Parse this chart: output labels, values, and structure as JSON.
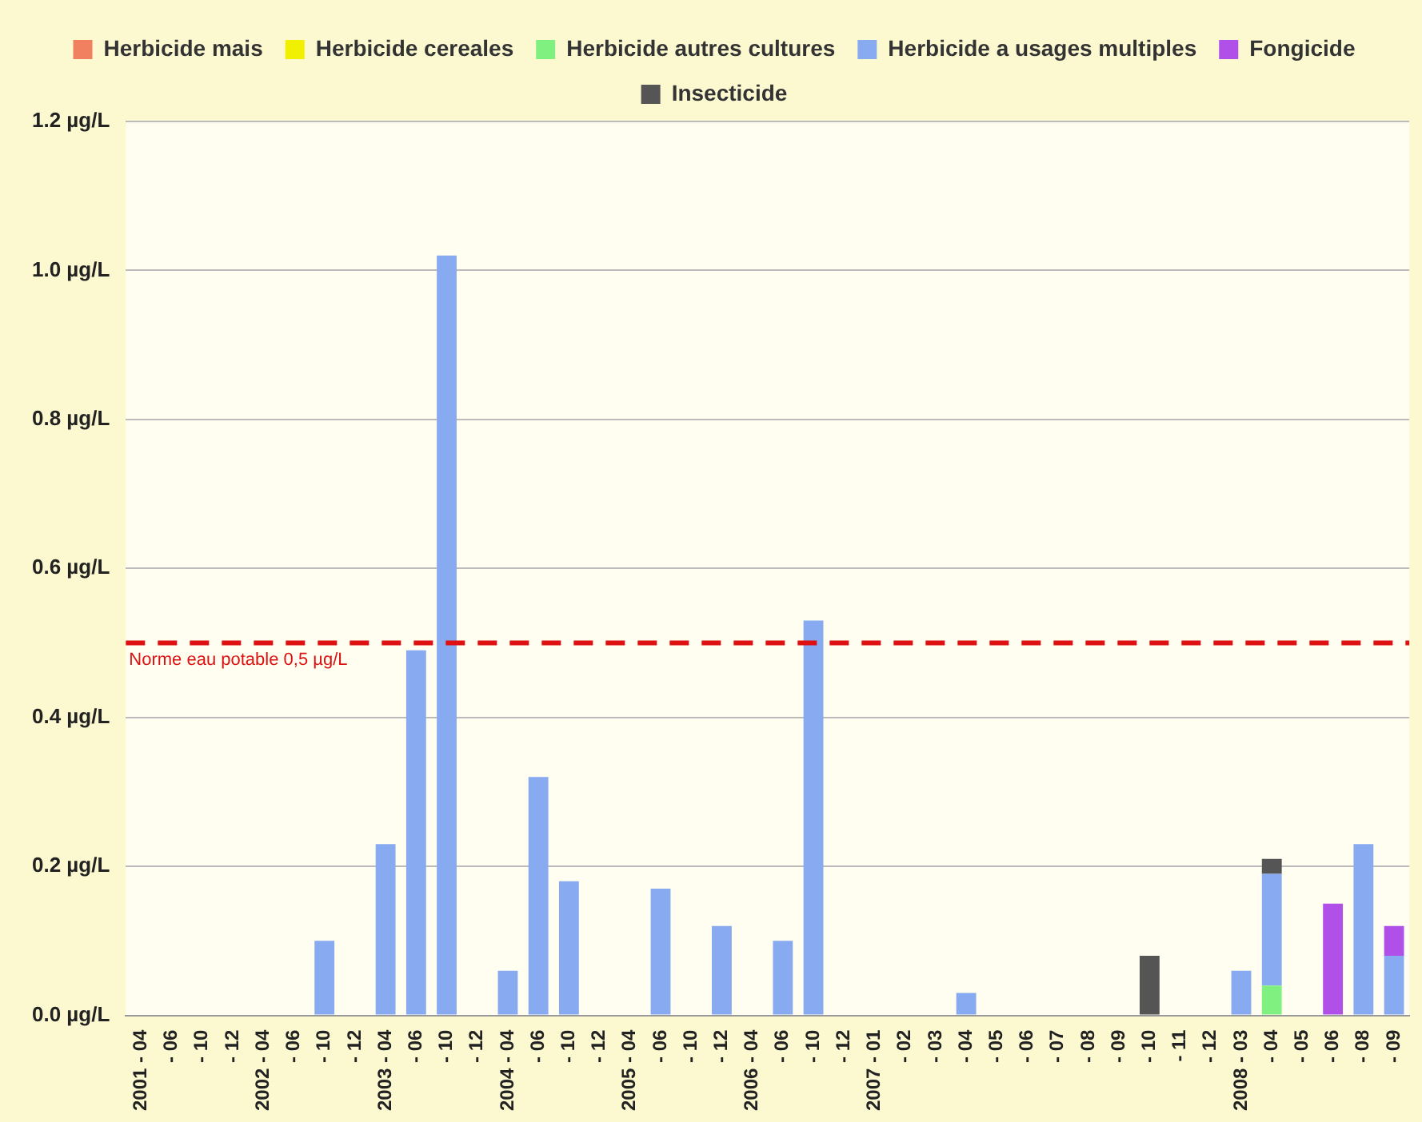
{
  "chart_data": {
    "type": "bar",
    "stacked": true,
    "categories": [
      "2001 - 04",
      "- 06",
      "- 10",
      "- 12",
      "2002 - 04",
      "- 06",
      "- 10",
      "- 12",
      "2003 - 04",
      "- 06",
      "- 10",
      "- 12",
      "2004 - 04",
      "- 06",
      "- 10",
      "- 12",
      "2005 - 04",
      "- 06",
      "- 10",
      "- 12",
      "2006 - 04",
      "- 06",
      "- 10",
      "- 12",
      "2007 - 01",
      "- 02",
      "- 03",
      "- 04",
      "- 05",
      "- 06",
      "- 07",
      "- 08",
      "- 09",
      "- 10",
      "- 11",
      "- 12",
      "2008 - 03",
      "- 04",
      "- 05",
      "- 06",
      "- 08",
      "- 09"
    ],
    "series": [
      {
        "name": "Herbicide mais",
        "color": "#f08060",
        "values": [
          null,
          null,
          null,
          null,
          null,
          null,
          null,
          null,
          null,
          null,
          null,
          null,
          null,
          null,
          null,
          null,
          null,
          null,
          null,
          null,
          null,
          null,
          null,
          null,
          null,
          null,
          null,
          null,
          null,
          null,
          null,
          null,
          null,
          null,
          null,
          null,
          null,
          null,
          null,
          null,
          null,
          null
        ]
      },
      {
        "name": "Herbicide cereales",
        "color": "#f0f000",
        "values": [
          null,
          null,
          null,
          null,
          null,
          null,
          null,
          null,
          null,
          null,
          null,
          null,
          null,
          null,
          null,
          null,
          null,
          null,
          null,
          null,
          null,
          null,
          null,
          null,
          null,
          null,
          null,
          null,
          null,
          null,
          null,
          null,
          null,
          null,
          null,
          null,
          null,
          null,
          null,
          null,
          null,
          null
        ]
      },
      {
        "name": "Herbicide autres cultures",
        "color": "#80f080",
        "values": [
          null,
          null,
          null,
          null,
          null,
          null,
          null,
          null,
          null,
          null,
          null,
          null,
          null,
          null,
          null,
          null,
          null,
          null,
          null,
          null,
          null,
          null,
          null,
          null,
          null,
          null,
          null,
          null,
          null,
          null,
          null,
          null,
          null,
          null,
          null,
          null,
          null,
          0.04,
          null,
          null,
          null,
          null
        ]
      },
      {
        "name": "Herbicide a usages multiples",
        "color": "#88aaf0",
        "values": [
          null,
          null,
          null,
          null,
          null,
          null,
          0.1,
          null,
          0.23,
          0.49,
          1.02,
          null,
          0.06,
          0.32,
          0.18,
          null,
          null,
          0.17,
          null,
          0.12,
          null,
          0.1,
          0.53,
          null,
          null,
          null,
          null,
          0.03,
          null,
          null,
          null,
          null,
          null,
          null,
          null,
          null,
          0.06,
          0.15,
          null,
          null,
          0.23,
          0.08
        ]
      },
      {
        "name": "Fongicide",
        "color": "#b050e8",
        "values": [
          null,
          null,
          null,
          null,
          null,
          null,
          null,
          null,
          null,
          null,
          null,
          null,
          null,
          null,
          null,
          null,
          null,
          null,
          null,
          null,
          null,
          null,
          null,
          null,
          null,
          null,
          null,
          null,
          null,
          null,
          null,
          null,
          null,
          null,
          null,
          null,
          null,
          null,
          null,
          0.15,
          null,
          0.04
        ]
      },
      {
        "name": "Insecticide",
        "color": "#555555",
        "values": [
          null,
          null,
          null,
          null,
          null,
          null,
          null,
          null,
          null,
          null,
          null,
          null,
          null,
          null,
          null,
          null,
          null,
          null,
          null,
          null,
          null,
          null,
          null,
          null,
          null,
          null,
          null,
          null,
          null,
          null,
          null,
          null,
          null,
          0.08,
          null,
          null,
          null,
          0.02,
          null,
          null,
          null,
          null
        ]
      }
    ],
    "ylim": [
      0,
      1.2
    ],
    "yticks": [
      {
        "value": 0,
        "label": "0.0 µg/L"
      },
      {
        "value": 0.2,
        "label": "0.2 µg/L"
      },
      {
        "value": 0.4,
        "label": "0.4 µg/L"
      },
      {
        "value": 0.6,
        "label": "0.6 µg/L"
      },
      {
        "value": 0.8,
        "label": "0.8 µg/L"
      },
      {
        "value": 1.0,
        "label": "1.0 µg/L"
      },
      {
        "value": 1.2,
        "label": "1.2 µg/L"
      }
    ],
    "ref_lines": [
      {
        "axis": "y",
        "value": 0.5,
        "label": "Norme eau potable 0,5 µg/L",
        "color": "#dd1111",
        "line_style": "dashed"
      }
    ],
    "grid": "y",
    "legend": "top"
  }
}
